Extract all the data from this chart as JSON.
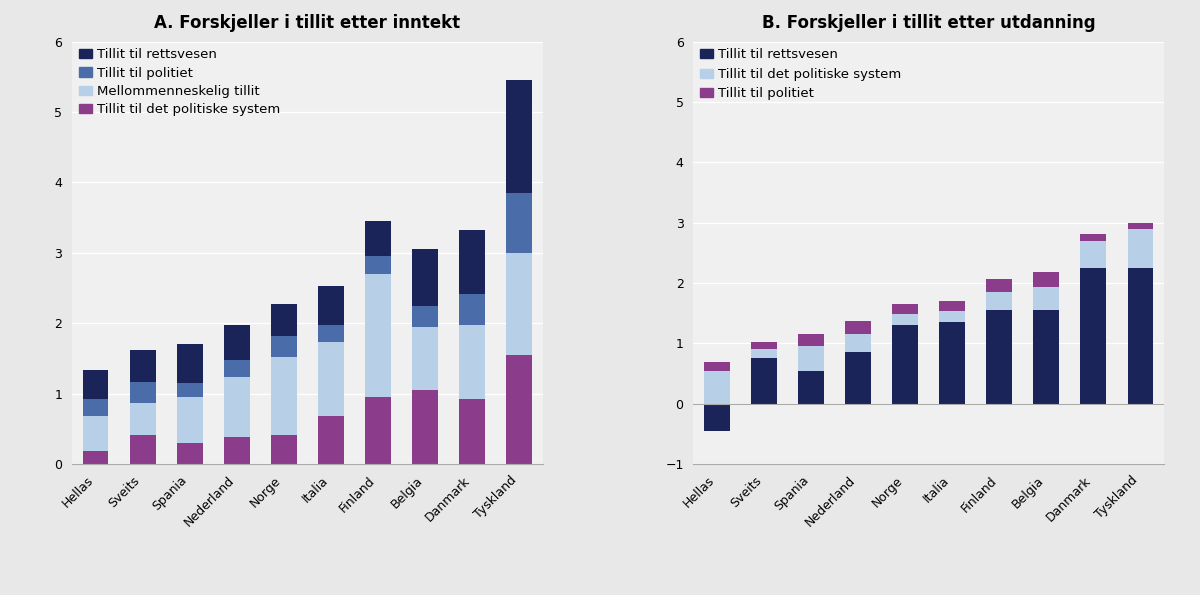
{
  "title_A": "A. Forskjeller i tillit etter inntekt",
  "title_B": "B. Forskjeller i tillit etter utdanning",
  "countries": [
    "Hellas",
    "Sveits",
    "Spania",
    "Nederland",
    "Norge",
    "Italia",
    "Finland",
    "Belgia",
    "Danmark",
    "Tyskland"
  ],
  "chart_A": {
    "series_order": [
      "politisk",
      "mellom",
      "politiet",
      "rettsvesen"
    ],
    "rettsvesen": [
      0.4,
      0.45,
      0.55,
      0.5,
      0.45,
      0.55,
      0.5,
      0.8,
      0.9,
      1.6
    ],
    "politiet": [
      0.25,
      0.3,
      0.2,
      0.25,
      0.3,
      0.25,
      0.25,
      0.3,
      0.45,
      0.85
    ],
    "mellom": [
      0.5,
      0.45,
      0.65,
      0.85,
      1.1,
      1.05,
      1.75,
      0.9,
      1.05,
      1.45
    ],
    "politisk": [
      0.18,
      0.42,
      0.3,
      0.38,
      0.42,
      0.68,
      0.95,
      1.05,
      0.92,
      1.55
    ],
    "colors": {
      "rettsvesen": "#1a2458",
      "politiet": "#4a6ca8",
      "mellom": "#b8cfe8",
      "politisk": "#8b3d8b"
    },
    "legend": [
      "Tillit til rettsvesen",
      "Tillit til politiet",
      "Mellommenneskelig tillit",
      "Tillit til det politiske system"
    ],
    "legend_colors": [
      "#1a2458",
      "#4a6ca8",
      "#b8cfe8",
      "#8b3d8b"
    ],
    "ylim": [
      0,
      6
    ],
    "yticks": [
      0,
      1,
      2,
      3,
      4,
      5,
      6
    ]
  },
  "chart_B": {
    "rettsvesen": [
      -0.45,
      0.75,
      0.55,
      0.85,
      1.3,
      1.35,
      1.55,
      1.55,
      2.25,
      2.25
    ],
    "politisk": [
      0.55,
      0.15,
      0.4,
      0.3,
      0.18,
      0.18,
      0.3,
      0.38,
      0.45,
      0.65
    ],
    "politiet": [
      0.15,
      0.12,
      0.2,
      0.22,
      0.18,
      0.18,
      0.22,
      0.25,
      0.12,
      0.1
    ],
    "colors": {
      "rettsvesen": "#1a2458",
      "politisk": "#b8cfe8",
      "politiet": "#8b3d8b"
    },
    "legend": [
      "Tillit til rettsvesen",
      "Tillit til det politiske system",
      "Tillit til politiet"
    ],
    "legend_colors": [
      "#1a2458",
      "#b8cfe8",
      "#8b3d8b"
    ],
    "ylim": [
      -1,
      6
    ],
    "yticks": [
      -1,
      0,
      1,
      2,
      3,
      4,
      5,
      6
    ]
  },
  "background_color": "#e8e8e8",
  "plot_bg_color": "#f0f0f0",
  "bar_width": 0.55,
  "fontsize_title": 12,
  "fontsize_tick": 9,
  "fontsize_legend": 9.5
}
